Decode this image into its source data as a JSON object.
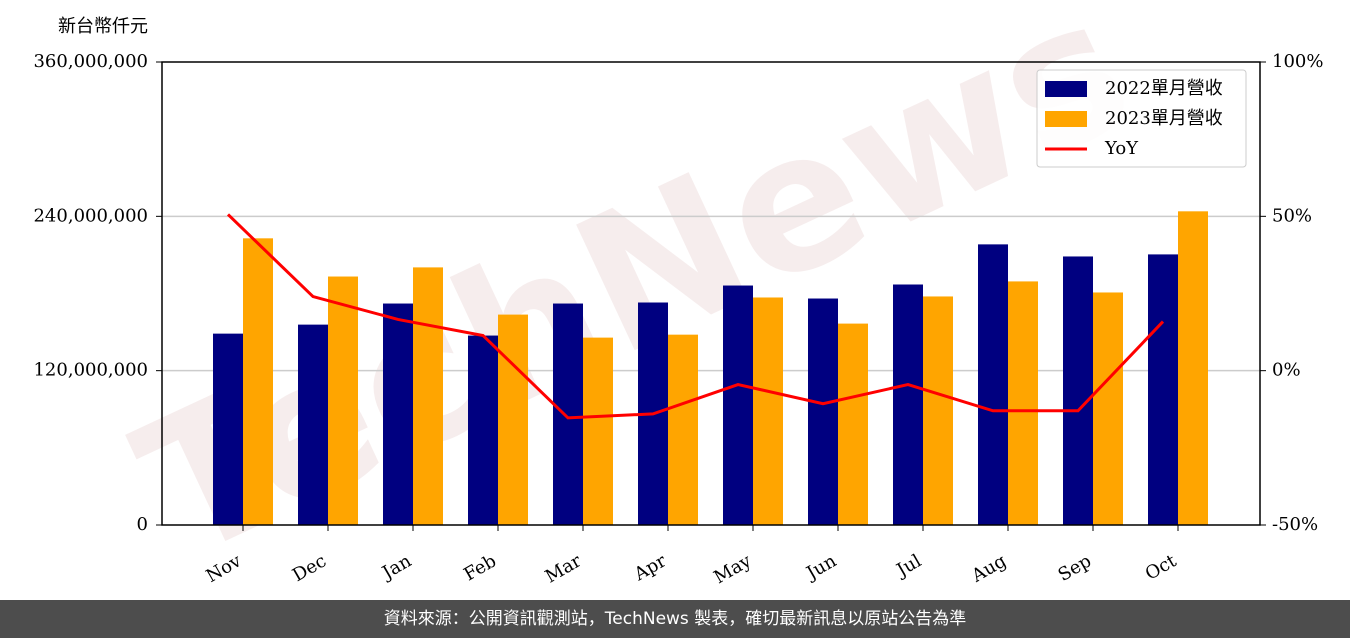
{
  "chart_data": {
    "type": "bar-line",
    "y_label": "新台幣仟元",
    "watermark": "TechNews",
    "categories": [
      "Nov",
      "Dec",
      "Jan",
      "Feb",
      "Mar",
      "Apr",
      "May",
      "Jun",
      "Jul",
      "Aug",
      "Sep",
      "Oct"
    ],
    "series": [
      {
        "name": "2022單月營收",
        "color": "#000080",
        "values": [
          148800000,
          155800000,
          172200000,
          147300000,
          172200000,
          173000000,
          186200000,
          176100000,
          187000000,
          218200000,
          208800000,
          210400000
        ]
      },
      {
        "name": "2023單月營收",
        "color": "#ffa500",
        "values": [
          222900000,
          193200000,
          200300000,
          163600000,
          145700000,
          148000000,
          176900000,
          156600000,
          177700000,
          189400000,
          180800000,
          243900000
        ]
      },
      {
        "name": "YoY",
        "color": "#ff0000",
        "axis": "y2",
        "values": [
          50.6,
          24,
          16.6,
          11.4,
          -15.3,
          -14,
          -4.5,
          -10.7,
          -4.5,
          -13,
          -13,
          15.9
        ]
      }
    ],
    "ylim": [
      0,
      360000000
    ],
    "yticks": [
      0,
      {
        "value": 120000000,
        "label": "120,000,000"
      },
      {
        "value": 240000000,
        "label": "240,000,000"
      },
      {
        "value": 360000000,
        "label": "360,000,000"
      }
    ],
    "y2lim": [
      -50,
      100
    ],
    "y2ticks": [
      {
        "value": -50,
        "label": "-50%"
      },
      {
        "value": 0,
        "label": "0%"
      },
      {
        "value": 50,
        "label": "50%"
      },
      {
        "value": 100,
        "label": "100%"
      }
    ],
    "grid": true,
    "legend": "upper right"
  },
  "footer": "資料來源：公開資訊觀測站，TechNews 製表，確切最新訊息以原站公告為準"
}
